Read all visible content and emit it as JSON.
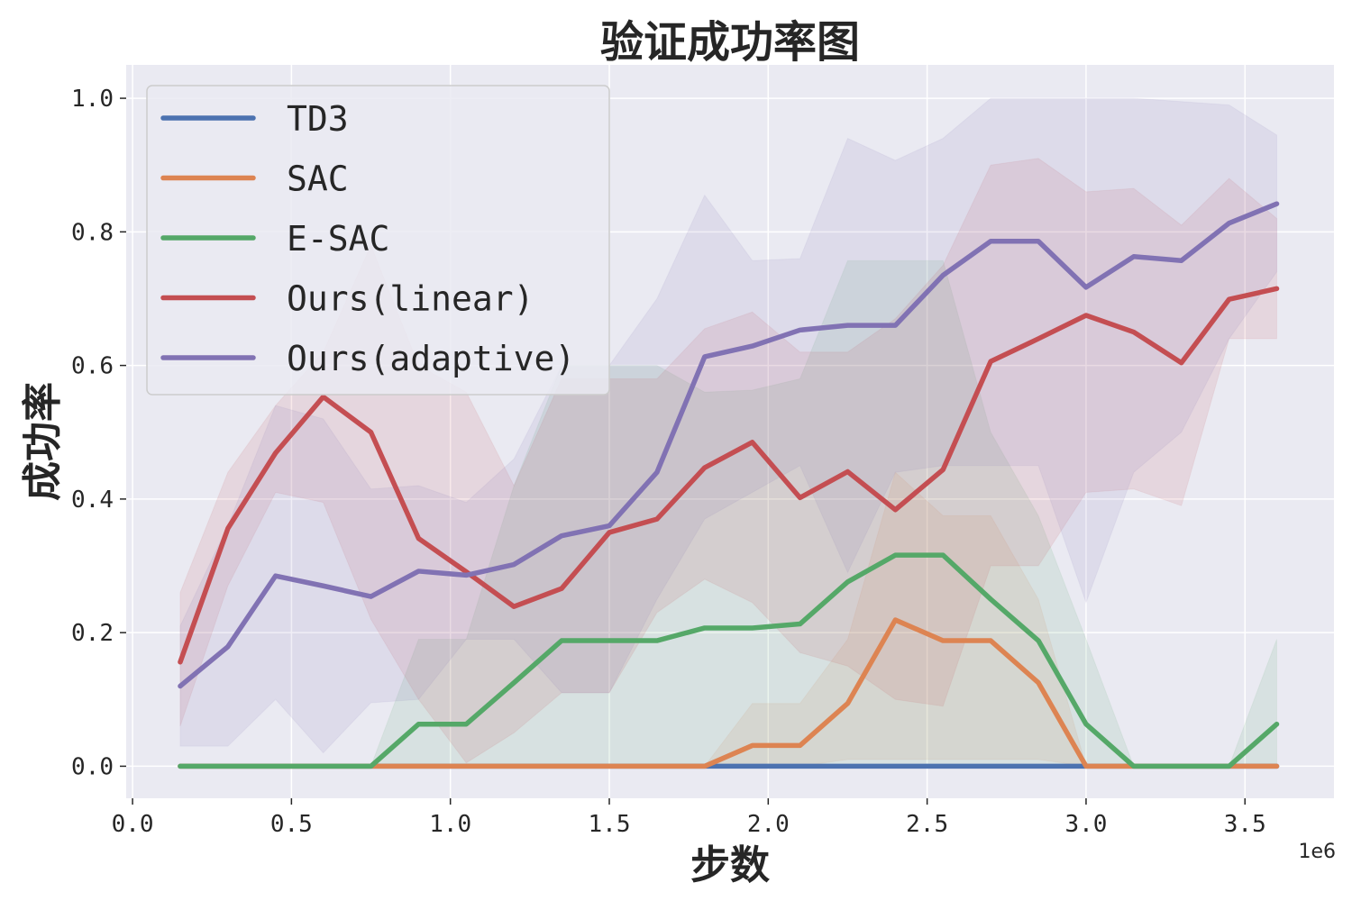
{
  "chart_data": {
    "type": "line",
    "title": "验证成功率图",
    "xlabel": "步数",
    "ylabel": "成功率",
    "x_offset_label": "1e6",
    "xlim": [
      -0.02,
      3.78
    ],
    "ylim": [
      -0.048,
      1.05
    ],
    "xticks": [
      0.0,
      0.5,
      1.0,
      1.5,
      2.0,
      2.5,
      3.0,
      3.5
    ],
    "xtick_labels": [
      "0.0",
      "0.5",
      "1.0",
      "1.5",
      "2.0",
      "2.5",
      "3.0",
      "3.5"
    ],
    "yticks": [
      0.0,
      0.2,
      0.4,
      0.6,
      0.8,
      1.0
    ],
    "ytick_labels": [
      "0.0",
      "0.2",
      "0.4",
      "0.6",
      "0.8",
      "1.0"
    ],
    "grid": true,
    "legend_position": "top-left",
    "x": [
      0.15,
      0.3,
      0.45,
      0.6,
      0.75,
      0.9,
      1.05,
      1.2,
      1.35,
      1.5,
      1.65,
      1.8,
      1.95,
      2.1,
      2.25,
      2.4,
      2.55,
      2.7,
      2.85,
      3.0,
      3.15,
      3.3,
      3.45,
      3.6
    ],
    "series": [
      {
        "name": "TD3",
        "color": "#4c72b0",
        "values": [
          0,
          0,
          0,
          0,
          0,
          0,
          0,
          0,
          0,
          0,
          0,
          0,
          0,
          0,
          0,
          0,
          0,
          0,
          0,
          0,
          0,
          0,
          0,
          0
        ],
        "lower": [
          0,
          0,
          0,
          0,
          0,
          0,
          0,
          0,
          0,
          0,
          0,
          0,
          0,
          0,
          0,
          0,
          0,
          0,
          0,
          0,
          0,
          0,
          0,
          0
        ],
        "upper": [
          0,
          0,
          0,
          0,
          0,
          0,
          0,
          0,
          0,
          0,
          0,
          0,
          0,
          0,
          0,
          0,
          0,
          0,
          0,
          0,
          0,
          0,
          0,
          0
        ]
      },
      {
        "name": "SAC",
        "color": "#dd8452",
        "values": [
          0,
          0,
          0,
          0,
          0,
          0,
          0,
          0,
          0,
          0,
          0,
          0,
          0.031,
          0.031,
          0.094,
          0.219,
          0.188,
          0.188,
          0.125,
          0,
          0,
          0,
          0,
          0
        ],
        "lower": [
          0,
          0,
          0,
          0,
          0,
          0,
          0,
          0,
          0,
          0,
          0,
          0,
          0,
          0,
          0.01,
          0.01,
          0.01,
          0.01,
          0.01,
          0,
          0,
          0,
          0,
          0
        ],
        "upper": [
          0,
          0,
          0,
          0,
          0,
          0,
          0,
          0,
          0,
          0,
          0,
          0,
          0.094,
          0.094,
          0.19,
          0.44,
          0.375,
          0.375,
          0.25,
          0,
          0,
          0,
          0,
          0
        ]
      },
      {
        "name": "E-SAC",
        "color": "#55a868",
        "values": [
          0,
          0,
          0,
          0,
          0,
          0.063,
          0.063,
          0.125,
          0.188,
          0.188,
          0.188,
          0.207,
          0.207,
          0.213,
          0.276,
          0.316,
          0.316,
          0.25,
          0.188,
          0.063,
          0,
          0,
          0,
          0.063
        ],
        "lower": [
          0,
          0,
          0,
          0,
          0,
          0,
          0,
          0,
          0,
          0,
          0,
          0,
          0,
          0,
          0,
          0,
          0,
          0,
          0,
          0,
          0,
          0,
          0,
          0
        ],
        "upper": [
          0,
          0,
          0,
          0,
          0,
          0.19,
          0.19,
          0.42,
          0.6,
          0.6,
          0.6,
          0.56,
          0.563,
          0.58,
          0.757,
          0.757,
          0.757,
          0.5,
          0.375,
          0.19,
          0,
          0,
          0,
          0.19
        ]
      },
      {
        "name": "Ours(linear)",
        "color": "#c44e52",
        "values": [
          0.156,
          0.356,
          0.469,
          0.553,
          0.5,
          0.341,
          0.291,
          0.239,
          0.266,
          0.35,
          0.37,
          0.447,
          0.485,
          0.402,
          0.441,
          0.384,
          0.444,
          0.606,
          0.64,
          0.675,
          0.65,
          0.604,
          0.699,
          0.715
        ],
        "lower": [
          0.06,
          0.27,
          0.41,
          0.395,
          0.22,
          0.1,
          0.005,
          0.05,
          0.11,
          0.11,
          0.23,
          0.28,
          0.245,
          0.17,
          0.15,
          0.1,
          0.09,
          0.3,
          0.3,
          0.41,
          0.415,
          0.39,
          0.64,
          0.64
        ],
        "upper": [
          0.26,
          0.44,
          0.54,
          0.62,
          0.78,
          0.6,
          0.56,
          0.42,
          0.58,
          0.58,
          0.58,
          0.655,
          0.68,
          0.62,
          0.62,
          0.67,
          0.75,
          0.9,
          0.91,
          0.86,
          0.865,
          0.81,
          0.88,
          0.82
        ]
      },
      {
        "name": "Ours(adaptive)",
        "color": "#8172b3",
        "values": [
          0.12,
          0.179,
          0.285,
          0.27,
          0.254,
          0.292,
          0.286,
          0.302,
          0.345,
          0.36,
          0.44,
          0.613,
          0.629,
          0.653,
          0.66,
          0.66,
          0.735,
          0.786,
          0.786,
          0.717,
          0.763,
          0.757,
          0.813,
          0.842
        ],
        "lower": [
          0.03,
          0.03,
          0.1,
          0.02,
          0.095,
          0.1,
          0.19,
          0.19,
          0.11,
          0.11,
          0.25,
          0.37,
          0.41,
          0.45,
          0.29,
          0.44,
          0.45,
          0.45,
          0.45,
          0.245,
          0.44,
          0.5,
          0.64,
          0.74
        ],
        "upper": [
          0.21,
          0.36,
          0.54,
          0.52,
          0.415,
          0.42,
          0.395,
          0.46,
          0.6,
          0.6,
          0.7,
          0.855,
          0.757,
          0.76,
          0.94,
          0.907,
          0.94,
          1.0,
          1.0,
          1.0,
          1.0,
          0.995,
          0.99,
          0.945
        ]
      }
    ]
  }
}
